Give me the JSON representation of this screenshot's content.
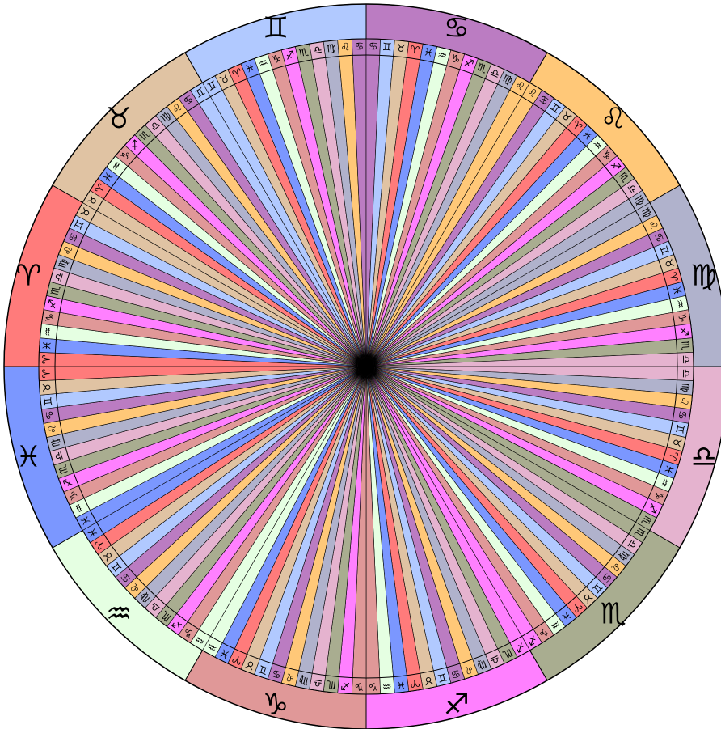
{
  "signs": [
    {
      "key": "aries",
      "glyph": "♈",
      "color": "#ff7b7b"
    },
    {
      "key": "taurus",
      "glyph": "♉",
      "color": "#e0c3a3"
    },
    {
      "key": "gemini",
      "glyph": "♊",
      "color": "#b1c9ff"
    },
    {
      "key": "cancer",
      "glyph": "♋",
      "color": "#bb7cc2"
    },
    {
      "key": "leo",
      "glyph": "♌",
      "color": "#ffc878"
    },
    {
      "key": "virgo",
      "glyph": "♍",
      "color": "#b0b2cc"
    },
    {
      "key": "libra",
      "glyph": "♎",
      "color": "#e5b3cf"
    },
    {
      "key": "scorpio",
      "glyph": "♏",
      "color": "#a9ad90"
    },
    {
      "key": "sagittarius",
      "glyph": "♐",
      "color": "#ff80ff"
    },
    {
      "key": "capricorn",
      "glyph": "♑",
      "color": "#e09898"
    },
    {
      "key": "aquarius",
      "glyph": "♒",
      "color": "#e5ffe2"
    },
    {
      "key": "pisces",
      "glyph": "♓",
      "color": "#7b97ff"
    }
  ],
  "outer_ring_order": [
    "aries",
    "taurus",
    "gemini",
    "cancer",
    "leo",
    "virgo",
    "libra",
    "scorpio",
    "sagittarius",
    "capricorn",
    "aquarius",
    "pisces"
  ],
  "stroke_color": "#000000",
  "center_color": "#000000"
}
